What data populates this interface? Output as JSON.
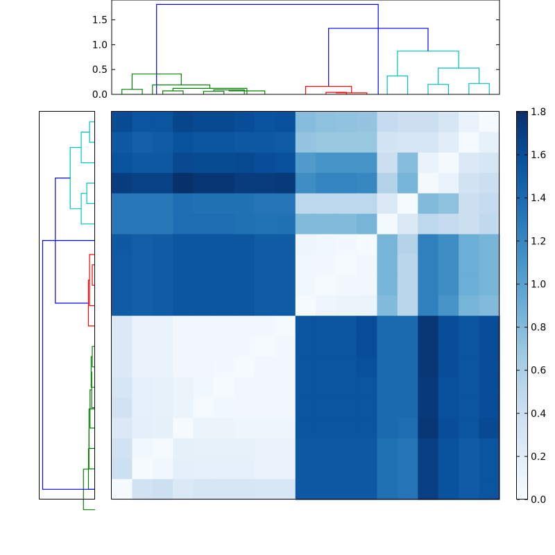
{
  "chart_data": [
    {
      "type": "heatmap",
      "title": "",
      "xlabel": "",
      "ylabel": "",
      "rows": 19,
      "cols": 19,
      "colormap": "Blues",
      "vmin": 0.0,
      "vmax": 1.8,
      "values": [
        [
          1.61,
          1.55,
          1.55,
          1.65,
          1.62,
          1.62,
          1.6,
          1.56,
          1.58,
          0.78,
          0.75,
          0.73,
          0.72,
          0.45,
          0.4,
          0.4,
          0.3,
          0.12,
          0.02
        ],
        [
          1.52,
          1.47,
          1.5,
          1.57,
          1.54,
          1.54,
          1.52,
          1.52,
          1.5,
          0.72,
          0.7,
          0.7,
          0.7,
          0.33,
          0.3,
          0.3,
          0.2,
          0.02,
          0.14
        ],
        [
          1.56,
          1.52,
          1.52,
          1.63,
          1.61,
          1.61,
          1.62,
          1.6,
          1.58,
          1.05,
          1.1,
          1.1,
          1.1,
          0.4,
          0.78,
          0.12,
          0.03,
          0.25,
          0.3
        ],
        [
          1.71,
          1.68,
          1.68,
          1.8,
          1.76,
          1.76,
          1.72,
          1.72,
          1.74,
          1.15,
          1.22,
          1.22,
          1.2,
          0.55,
          0.85,
          0.03,
          0.12,
          0.35,
          0.4
        ],
        [
          1.3,
          1.3,
          1.3,
          1.37,
          1.35,
          1.35,
          1.35,
          1.33,
          1.33,
          0.5,
          0.5,
          0.5,
          0.5,
          0.25,
          0.02,
          0.8,
          0.75,
          0.4,
          0.45
        ],
        [
          1.3,
          1.3,
          1.3,
          1.38,
          1.38,
          1.38,
          1.36,
          1.34,
          1.35,
          0.8,
          0.8,
          0.8,
          0.85,
          0.03,
          0.25,
          0.5,
          0.45,
          0.4,
          0.48
        ],
        [
          1.52,
          1.48,
          1.5,
          1.54,
          1.54,
          1.54,
          1.54,
          1.5,
          1.5,
          0.08,
          0.06,
          0.04,
          0.02,
          0.85,
          0.55,
          1.25,
          1.15,
          0.9,
          0.85
        ],
        [
          1.5,
          1.48,
          1.5,
          1.54,
          1.54,
          1.54,
          1.54,
          1.5,
          1.5,
          0.06,
          0.04,
          0.02,
          0.05,
          0.85,
          0.52,
          1.25,
          1.15,
          0.9,
          0.85
        ],
        [
          1.5,
          1.48,
          1.5,
          1.54,
          1.54,
          1.54,
          1.54,
          1.5,
          1.5,
          0.06,
          0.02,
          0.04,
          0.05,
          0.85,
          0.52,
          1.25,
          1.15,
          0.9,
          0.85
        ],
        [
          1.5,
          1.48,
          1.5,
          1.54,
          1.54,
          1.54,
          1.54,
          1.5,
          1.5,
          0.02,
          0.08,
          0.1,
          0.1,
          0.8,
          0.52,
          1.25,
          1.1,
          0.85,
          0.8
        ],
        [
          0.25,
          0.12,
          0.12,
          0.05,
          0.05,
          0.05,
          0.05,
          0.04,
          0.02,
          1.55,
          1.55,
          1.55,
          1.6,
          1.4,
          1.4,
          1.75,
          1.6,
          1.55,
          1.6
        ],
        [
          0.25,
          0.12,
          0.12,
          0.05,
          0.05,
          0.05,
          0.04,
          0.02,
          0.04,
          1.55,
          1.55,
          1.55,
          1.6,
          1.4,
          1.4,
          1.75,
          1.6,
          1.55,
          1.6
        ],
        [
          0.25,
          0.12,
          0.12,
          0.05,
          0.05,
          0.04,
          0.02,
          0.05,
          0.05,
          1.55,
          1.55,
          1.55,
          1.58,
          1.4,
          1.4,
          1.75,
          1.6,
          1.55,
          1.6
        ],
        [
          0.3,
          0.15,
          0.14,
          0.1,
          0.06,
          0.02,
          0.05,
          0.05,
          0.05,
          1.55,
          1.55,
          1.55,
          1.55,
          1.4,
          1.4,
          1.74,
          1.58,
          1.55,
          1.6
        ],
        [
          0.35,
          0.15,
          0.14,
          0.1,
          0.02,
          0.06,
          0.05,
          0.05,
          0.05,
          1.55,
          1.55,
          1.55,
          1.55,
          1.4,
          1.4,
          1.74,
          1.58,
          1.55,
          1.6
        ],
        [
          0.25,
          0.17,
          0.16,
          0.02,
          0.1,
          0.1,
          0.08,
          0.08,
          0.08,
          1.55,
          1.55,
          1.55,
          1.55,
          1.4,
          1.38,
          1.75,
          1.6,
          1.55,
          1.62
        ],
        [
          0.35,
          0.06,
          0.02,
          0.16,
          0.14,
          0.14,
          0.14,
          0.12,
          0.12,
          1.52,
          1.52,
          1.52,
          1.52,
          1.36,
          1.33,
          1.69,
          1.57,
          1.5,
          1.55
        ],
        [
          0.38,
          0.02,
          0.06,
          0.17,
          0.15,
          0.15,
          0.15,
          0.12,
          0.12,
          1.52,
          1.52,
          1.52,
          1.52,
          1.36,
          1.33,
          1.69,
          1.57,
          1.5,
          1.55
        ],
        [
          0.02,
          0.35,
          0.38,
          0.25,
          0.3,
          0.3,
          0.3,
          0.28,
          0.28,
          1.52,
          1.52,
          1.52,
          1.52,
          1.36,
          1.33,
          1.69,
          1.57,
          1.5,
          1.55
        ]
      ]
    },
    {
      "type": "dendrogram",
      "orientation": "top",
      "ylim": [
        0,
        1.9
      ],
      "yticks": [
        "0.0",
        "0.5",
        "1.0",
        "1.5"
      ],
      "leaves": 19,
      "colors": {
        "a": "#008000",
        "b": "#ff0000",
        "c": "#00bfbf",
        "d": "#0000ff"
      },
      "merges": [
        [
          0.5,
          1.5,
          0.1,
          "a"
        ],
        [
          2.5,
          3.5,
          0.07,
          "a"
        ],
        [
          4.5,
          5.5,
          0.06,
          "a"
        ],
        [
          5,
          6.5,
          0.09,
          "a"
        ],
        [
          5.75,
          7.5,
          0.07,
          "a"
        ],
        [
          3,
          6.625,
          0.12,
          "a"
        ],
        [
          2,
          4.81,
          0.19,
          "a"
        ],
        [
          1,
          3.41,
          0.41,
          "a"
        ],
        [
          10.5,
          11.5,
          0.04,
          "b"
        ],
        [
          11,
          12.5,
          0.03,
          "b"
        ],
        [
          9.5,
          11.75,
          0.16,
          "b"
        ],
        [
          13.5,
          14.5,
          0.37,
          "c"
        ],
        [
          15.5,
          16.5,
          0.2,
          "c"
        ],
        [
          17.5,
          18.5,
          0.22,
          "c"
        ],
        [
          16,
          18,
          0.53,
          "c"
        ],
        [
          14,
          17,
          0.87,
          "c"
        ],
        [
          10.63,
          15.5,
          1.33,
          "d"
        ],
        [
          2.2,
          13.06,
          1.81,
          "d"
        ]
      ]
    },
    {
      "type": "dendrogram",
      "orientation": "left",
      "leaves": 19,
      "colors": {
        "a": "#008000",
        "b": "#ff0000",
        "c": "#00bfbf",
        "d": "#0000ff"
      },
      "merges": [
        [
          0.5,
          1.5,
          0.1,
          "c"
        ],
        [
          1,
          2.5,
          0.25,
          "c"
        ],
        [
          3.5,
          4.5,
          0.15,
          "c"
        ],
        [
          4,
          5.5,
          0.25,
          "c"
        ],
        [
          1.75,
          4.75,
          0.45,
          "c"
        ],
        [
          7.5,
          8.5,
          0.05,
          "b"
        ],
        [
          7,
          9.5,
          0.1,
          "b"
        ],
        [
          8.25,
          10.5,
          0.12,
          "b"
        ],
        [
          11.5,
          12.5,
          0.05,
          "a"
        ],
        [
          12,
          13.5,
          0.07,
          "a"
        ],
        [
          12.75,
          14.5,
          0.06,
          "a"
        ],
        [
          13.63,
          15.5,
          0.09,
          "a"
        ],
        [
          14.56,
          16.5,
          0.11,
          "a"
        ],
        [
          15.53,
          17.5,
          0.11,
          "a"
        ],
        [
          16.52,
          18.5,
          0.12,
          "a"
        ],
        [
          17.51,
          19.5,
          0.21,
          "a"
        ],
        [
          3.25,
          9.38,
          0.72,
          "d"
        ],
        [
          6.31,
          18.5,
          0.95,
          "d"
        ]
      ]
    },
    {
      "type": "colorbar",
      "ticks": [
        "0.0",
        "0.2",
        "0.4",
        "0.6",
        "0.8",
        "1.0",
        "1.2",
        "1.4",
        "1.6",
        "1.8"
      ],
      "tick_values": [
        0.0,
        0.2,
        0.4,
        0.6,
        0.8,
        1.0,
        1.2,
        1.4,
        1.6,
        1.8
      ]
    }
  ]
}
